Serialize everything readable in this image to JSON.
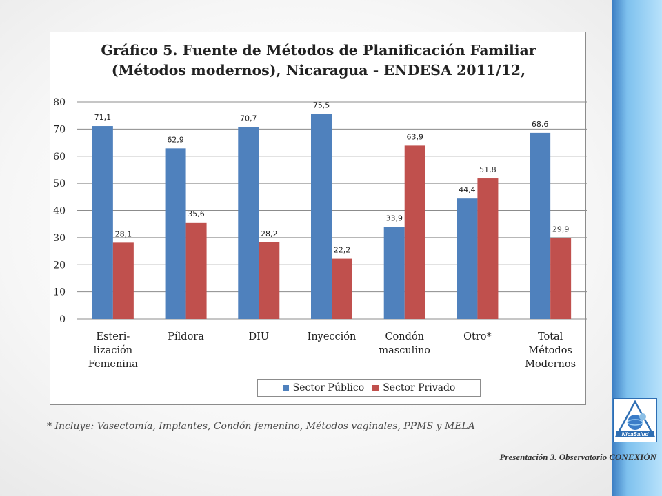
{
  "chart_data": {
    "type": "bar",
    "title_lines": [
      "Gráfico 5. Fuente de Métodos de Planificación Familiar",
      "(Métodos modernos), Nicaragua - ENDESA 2011/12,"
    ],
    "categories": [
      [
        "Esteri-",
        "lización",
        "Femenina"
      ],
      [
        "Píldora"
      ],
      [
        "DIU"
      ],
      [
        "Inyección"
      ],
      [
        "Condón",
        "masculino"
      ],
      [
        "Otro*"
      ],
      [
        "Total",
        "Métodos",
        "Modernos"
      ]
    ],
    "series": [
      {
        "name": "Sector Público",
        "color": "#4F81BD",
        "values": [
          71.1,
          62.9,
          70.7,
          75.5,
          33.9,
          44.4,
          68.6
        ],
        "labels": [
          "71,1",
          "62,9",
          "70,7",
          "75,5",
          "33,9",
          "44,4",
          "68,6"
        ]
      },
      {
        "name": "Sector Privado",
        "color": "#C0504D",
        "values": [
          28.1,
          35.6,
          28.2,
          22.2,
          63.9,
          51.8,
          29.9
        ],
        "labels": [
          "28,1",
          "35,6",
          "28,2",
          "22,2",
          "63,9",
          "51,8",
          "29,9"
        ]
      }
    ],
    "ylim": [
      0,
      80
    ],
    "yticks": [
      0,
      10,
      20,
      30,
      40,
      50,
      60,
      70,
      80
    ],
    "grid": true,
    "legend_position": "bottom"
  },
  "footnote": "*  Incluye: Vasectomía, Implantes, Condón femenino, Métodos vaginales, PPMS y MELA",
  "presentation_note": "Presentación 3. Observatorio CONEXIÓN",
  "logo": {
    "text": "NicaSalud",
    "icon": "nicasalud-logo-icon"
  },
  "theme": {
    "sidebar_color": "#7EC1EE",
    "gridline_color": "#8C8C8C"
  }
}
